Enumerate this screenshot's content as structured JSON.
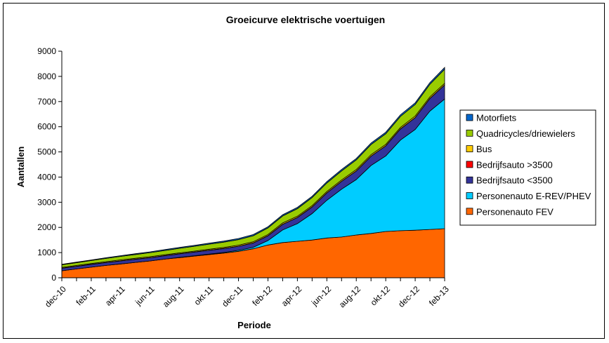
{
  "chart_data": {
    "type": "area",
    "stacked": true,
    "title": "Groeicurve elektrische voertuigen",
    "xlabel": "Periode",
    "ylabel": "Aantallen",
    "ylim": [
      0,
      9000
    ],
    "yticks": [
      0,
      1000,
      2000,
      3000,
      4000,
      5000,
      6000,
      7000,
      8000,
      9000
    ],
    "grid": false,
    "legend_position": "right",
    "categories": [
      "dec-10",
      "jan-11",
      "feb-11",
      "mrt-11",
      "apr-11",
      "mei-11",
      "jun-11",
      "jul-11",
      "aug-11",
      "sep-11",
      "okt-11",
      "nov-11",
      "dec-11",
      "jan-12",
      "feb-12",
      "mrt-12",
      "apr-12",
      "mei-12",
      "jun-12",
      "jul-12",
      "aug-12",
      "sep-12",
      "okt-12",
      "nov-12",
      "dec-12",
      "jan-13",
      "feb-13"
    ],
    "tick_labels": [
      "dec-10",
      "feb-11",
      "apr-11",
      "jun-11",
      "aug-11",
      "okt-11",
      "dec-11",
      "feb-12",
      "apr-12",
      "jun-12",
      "aug-12",
      "okt-12",
      "dec-12",
      "feb-13"
    ],
    "series": [
      {
        "name": "Personenauto FEV",
        "color": "#ff6600",
        "values": [
          280,
          350,
          420,
          490,
          550,
          610,
          670,
          740,
          800,
          860,
          920,
          980,
          1050,
          1150,
          1300,
          1400,
          1450,
          1500,
          1580,
          1620,
          1700,
          1760,
          1840,
          1870,
          1890,
          1920,
          1950
        ]
      },
      {
        "name": "Personenauto E-REV/PHEV",
        "color": "#00ccff",
        "values": [
          0,
          0,
          0,
          0,
          0,
          0,
          0,
          0,
          10,
          15,
          20,
          25,
          40,
          60,
          180,
          500,
          700,
          1050,
          1500,
          1900,
          2200,
          2700,
          3000,
          3600,
          4000,
          4700,
          5150
        ]
      },
      {
        "name": "Bedrijfsauto <3500",
        "color": "#333399",
        "values": [
          100,
          105,
          110,
          115,
          120,
          125,
          130,
          135,
          140,
          145,
          150,
          155,
          160,
          170,
          190,
          220,
          240,
          260,
          290,
          310,
          340,
          370,
          400,
          440,
          470,
          500,
          560
        ]
      },
      {
        "name": "Bedrijfsauto >3500",
        "color": "#ff0000",
        "values": [
          5,
          5,
          5,
          5,
          5,
          5,
          5,
          5,
          5,
          5,
          5,
          5,
          5,
          5,
          5,
          5,
          5,
          5,
          5,
          5,
          5,
          5,
          5,
          5,
          5,
          5,
          5
        ]
      },
      {
        "name": "Bus",
        "color": "#ffcc00",
        "values": [
          30,
          30,
          30,
          30,
          35,
          35,
          35,
          35,
          35,
          35,
          40,
          40,
          40,
          45,
          45,
          50,
          50,
          50,
          50,
          50,
          55,
          55,
          55,
          55,
          60,
          60,
          60
        ]
      },
      {
        "name": "Quadricycles/driewielers",
        "color": "#99cc00",
        "values": [
          100,
          110,
          120,
          130,
          140,
          150,
          160,
          170,
          180,
          190,
          200,
          210,
          220,
          240,
          260,
          280,
          300,
          320,
          340,
          360,
          380,
          400,
          420,
          440,
          460,
          500,
          560
        ]
      },
      {
        "name": "Motorfiets",
        "color": "#0066cc",
        "values": [
          20,
          22,
          24,
          26,
          28,
          30,
          32,
          34,
          36,
          38,
          40,
          42,
          44,
          46,
          48,
          50,
          52,
          54,
          56,
          58,
          60,
          62,
          64,
          66,
          68,
          70,
          72
        ]
      }
    ],
    "legend_order": [
      "Motorfiets",
      "Quadricycles/driewielers",
      "Bus",
      "Bedrijfsauto >3500",
      "Bedrijfsauto <3500",
      "Personenauto E-REV/PHEV",
      "Personenauto FEV"
    ]
  }
}
